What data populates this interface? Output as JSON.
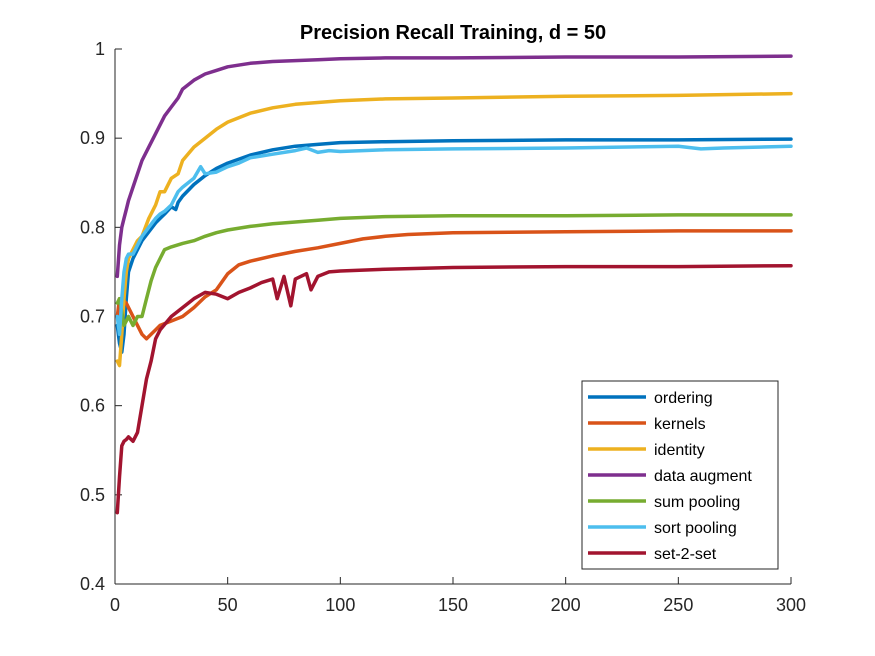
{
  "chart_data": {
    "type": "line",
    "title": "Precision Recall Training, d = 50",
    "xlabel": "",
    "ylabel": "",
    "xlim": [
      0,
      300
    ],
    "ylim": [
      0.4,
      1.0
    ],
    "x_ticks": [
      0,
      50,
      100,
      150,
      200,
      250,
      300
    ],
    "y_ticks": [
      0.4,
      0.5,
      0.6,
      0.7,
      0.8,
      0.9,
      1
    ],
    "x_tick_labels": [
      "0",
      "50",
      "100",
      "150",
      "200",
      "250",
      "300"
    ],
    "y_tick_labels": [
      "0.4",
      "0.5",
      "0.6",
      "0.7",
      "0.8",
      "0.9",
      "1"
    ],
    "grid": false,
    "legend_position": "bottom-right",
    "series": [
      {
        "name": "ordering",
        "color": "#0072BD",
        "x": [
          1,
          2,
          3,
          4,
          5,
          6,
          8,
          10,
          12,
          15,
          18,
          20,
          22,
          25,
          27,
          28,
          30,
          35,
          40,
          45,
          50,
          60,
          70,
          80,
          90,
          100,
          120,
          150,
          200,
          250,
          300
        ],
        "y": [
          0.69,
          0.67,
          0.66,
          0.68,
          0.72,
          0.75,
          0.765,
          0.775,
          0.785,
          0.795,
          0.805,
          0.81,
          0.815,
          0.823,
          0.82,
          0.828,
          0.835,
          0.848,
          0.858,
          0.866,
          0.872,
          0.881,
          0.887,
          0.891,
          0.893,
          0.895,
          0.896,
          0.897,
          0.898,
          0.898,
          0.899
        ]
      },
      {
        "name": "kernels",
        "color": "#D95319",
        "x": [
          1,
          2,
          3,
          5,
          8,
          10,
          12,
          14,
          16,
          18,
          20,
          25,
          30,
          35,
          40,
          45,
          50,
          55,
          60,
          70,
          80,
          90,
          100,
          110,
          120,
          130,
          150,
          200,
          250,
          300
        ],
        "y": [
          0.7,
          0.72,
          0.72,
          0.715,
          0.7,
          0.69,
          0.68,
          0.675,
          0.68,
          0.685,
          0.69,
          0.695,
          0.7,
          0.71,
          0.722,
          0.73,
          0.748,
          0.758,
          0.762,
          0.768,
          0.773,
          0.777,
          0.782,
          0.787,
          0.79,
          0.792,
          0.794,
          0.795,
          0.796,
          0.796
        ]
      },
      {
        "name": "identity",
        "color": "#EDB120",
        "x": [
          1,
          2,
          3,
          4,
          5,
          6,
          8,
          10,
          12,
          15,
          18,
          20,
          22,
          25,
          28,
          30,
          35,
          40,
          45,
          50,
          60,
          70,
          80,
          100,
          120,
          150,
          200,
          250,
          300
        ],
        "y": [
          0.65,
          0.645,
          0.68,
          0.72,
          0.75,
          0.765,
          0.775,
          0.785,
          0.79,
          0.81,
          0.825,
          0.84,
          0.84,
          0.855,
          0.86,
          0.875,
          0.89,
          0.9,
          0.91,
          0.918,
          0.928,
          0.934,
          0.938,
          0.942,
          0.944,
          0.945,
          0.947,
          0.948,
          0.95
        ]
      },
      {
        "name": "data augment",
        "color": "#7E2F8E",
        "x": [
          1,
          2,
          3,
          4,
          5,
          6,
          8,
          10,
          12,
          15,
          18,
          20,
          22,
          25,
          28,
          30,
          35,
          40,
          45,
          50,
          60,
          70,
          80,
          90,
          100,
          120,
          150,
          200,
          250,
          300
        ],
        "y": [
          0.745,
          0.78,
          0.8,
          0.81,
          0.82,
          0.83,
          0.845,
          0.86,
          0.875,
          0.89,
          0.905,
          0.915,
          0.925,
          0.935,
          0.945,
          0.955,
          0.965,
          0.972,
          0.976,
          0.98,
          0.984,
          0.986,
          0.987,
          0.988,
          0.989,
          0.99,
          0.99,
          0.991,
          0.991,
          0.992
        ]
      },
      {
        "name": "sum pooling",
        "color": "#77AC30",
        "x": [
          1,
          2,
          3,
          4,
          5,
          6,
          8,
          10,
          12,
          14,
          16,
          18,
          20,
          22,
          25,
          30,
          35,
          40,
          45,
          50,
          60,
          70,
          80,
          90,
          100,
          120,
          150,
          200,
          250,
          300
        ],
        "y": [
          0.715,
          0.72,
          0.705,
          0.69,
          0.695,
          0.7,
          0.69,
          0.7,
          0.7,
          0.72,
          0.74,
          0.755,
          0.765,
          0.775,
          0.778,
          0.782,
          0.785,
          0.79,
          0.794,
          0.797,
          0.801,
          0.804,
          0.806,
          0.808,
          0.81,
          0.812,
          0.813,
          0.813,
          0.814,
          0.814
        ]
      },
      {
        "name": "sort pooling",
        "color": "#4DBEEE",
        "x": [
          1,
          2,
          3,
          4,
          5,
          6,
          8,
          10,
          12,
          15,
          18,
          20,
          22,
          25,
          28,
          30,
          35,
          38,
          40,
          45,
          50,
          55,
          60,
          70,
          80,
          85,
          90,
          95,
          100,
          120,
          150,
          200,
          250,
          260,
          270,
          300
        ],
        "y": [
          0.7,
          0.68,
          0.72,
          0.75,
          0.765,
          0.77,
          0.77,
          0.78,
          0.79,
          0.8,
          0.81,
          0.815,
          0.818,
          0.825,
          0.84,
          0.845,
          0.855,
          0.868,
          0.86,
          0.862,
          0.868,
          0.872,
          0.878,
          0.882,
          0.886,
          0.889,
          0.884,
          0.886,
          0.885,
          0.887,
          0.888,
          0.889,
          0.891,
          0.888,
          0.889,
          0.891
        ]
      },
      {
        "name": "set-2-set",
        "color": "#A2142F",
        "x": [
          1,
          2,
          3,
          4,
          5,
          6,
          8,
          10,
          12,
          14,
          16,
          18,
          20,
          25,
          30,
          35,
          40,
          45,
          50,
          55,
          60,
          65,
          70,
          72,
          75,
          78,
          80,
          85,
          87,
          90,
          95,
          100,
          120,
          150,
          200,
          250,
          300
        ],
        "y": [
          0.48,
          0.52,
          0.555,
          0.56,
          0.562,
          0.565,
          0.56,
          0.57,
          0.6,
          0.63,
          0.65,
          0.675,
          0.685,
          0.7,
          0.71,
          0.72,
          0.727,
          0.725,
          0.72,
          0.727,
          0.732,
          0.738,
          0.742,
          0.72,
          0.745,
          0.712,
          0.742,
          0.748,
          0.73,
          0.745,
          0.75,
          0.751,
          0.753,
          0.755,
          0.756,
          0.756,
          0.757
        ]
      }
    ]
  }
}
